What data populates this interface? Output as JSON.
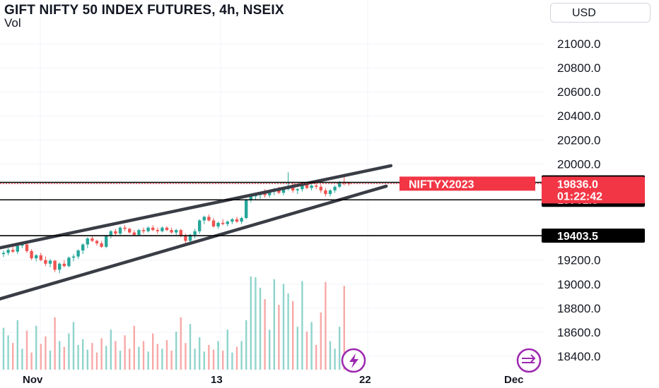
{
  "header": {
    "title": "GIFT NIFTY 50 INDEX FUTURES, 4h, NSEIX",
    "volume_label": "Vol",
    "currency": "USD"
  },
  "colors": {
    "up": "#26a69a",
    "down": "#ef5350",
    "vol_up": "#8fd4cc",
    "vol_down": "#f7a9a7",
    "trendline": "#3a3d46",
    "last_price": "#f23645",
    "horizontal_line": "#000000",
    "grid": "#f0f3fa"
  },
  "chart_data": {
    "type": "candlestick",
    "symbol": "GIFT NIFTY 50 INDEX FUTURES",
    "interval": "4h",
    "exchange": "NSEIX",
    "y_ticks": [
      21000.0,
      20800.0,
      20600.0,
      20400.0,
      20200.0,
      20000.0,
      19200.0,
      19000.0,
      18800.0,
      18600.0,
      18400.0
    ],
    "y_tick_labels": [
      "21000.0",
      "20800.0",
      "20600.0",
      "20400.0",
      "20200.0",
      "20000.0",
      "19200.0",
      "19000.0",
      "18800.0",
      "18600.0",
      "18400.0"
    ],
    "ylim": [
      18350,
      21100
    ],
    "x_ticks": [
      "Nov",
      "13",
      "22",
      "Dec"
    ],
    "ohlc": [
      [
        19250,
        19280,
        19225,
        19260
      ],
      [
        19260,
        19300,
        19240,
        19285
      ],
      [
        19285,
        19310,
        19260,
        19270
      ],
      [
        19270,
        19330,
        19250,
        19320
      ],
      [
        19320,
        19345,
        19300,
        19330
      ],
      [
        19330,
        19340,
        19260,
        19275
      ],
      [
        19275,
        19290,
        19200,
        19215
      ],
      [
        19215,
        19250,
        19190,
        19240
      ],
      [
        19240,
        19260,
        19190,
        19200
      ],
      [
        19200,
        19230,
        19150,
        19170
      ],
      [
        19170,
        19210,
        19140,
        19195
      ],
      [
        19195,
        19200,
        19100,
        19120
      ],
      [
        19120,
        19180,
        19090,
        19170
      ],
      [
        19170,
        19200,
        19140,
        19150
      ],
      [
        19150,
        19230,
        19140,
        19220
      ],
      [
        19220,
        19250,
        19190,
        19230
      ],
      [
        19230,
        19290,
        19210,
        19280
      ],
      [
        19280,
        19340,
        19250,
        19330
      ],
      [
        19330,
        19390,
        19300,
        19380
      ],
      [
        19380,
        19400,
        19350,
        19360
      ],
      [
        19360,
        19370,
        19320,
        19340
      ],
      [
        19340,
        19360,
        19300,
        19310
      ],
      [
        19310,
        19410,
        19300,
        19400
      ],
      [
        19400,
        19450,
        19380,
        19440
      ],
      [
        19440,
        19460,
        19400,
        19420
      ],
      [
        19420,
        19480,
        19410,
        19470
      ],
      [
        19470,
        19490,
        19440,
        19460
      ],
      [
        19460,
        19470,
        19420,
        19430
      ],
      [
        19430,
        19450,
        19400,
        19410
      ],
      [
        19410,
        19460,
        19400,
        19450
      ],
      [
        19450,
        19470,
        19420,
        19440
      ],
      [
        19440,
        19480,
        19430,
        19470
      ],
      [
        19470,
        19490,
        19440,
        19450
      ],
      [
        19450,
        19470,
        19420,
        19440
      ],
      [
        19440,
        19480,
        19430,
        19470
      ],
      [
        19470,
        19480,
        19440,
        19450
      ],
      [
        19450,
        19470,
        19420,
        19430
      ],
      [
        19430,
        19460,
        19410,
        19450
      ],
      [
        19450,
        19460,
        19390,
        19400
      ],
      [
        19400,
        19420,
        19340,
        19360
      ],
      [
        19360,
        19420,
        19350,
        19410
      ],
      [
        19410,
        19460,
        19380,
        19440
      ],
      [
        19440,
        19540,
        19420,
        19530
      ],
      [
        19530,
        19570,
        19500,
        19560
      ],
      [
        19560,
        19580,
        19520,
        19530
      ],
      [
        19530,
        19550,
        19470,
        19480
      ],
      [
        19480,
        19520,
        19460,
        19510
      ],
      [
        19510,
        19540,
        19490,
        19500
      ],
      [
        19500,
        19530,
        19480,
        19520
      ],
      [
        19520,
        19550,
        19500,
        19540
      ],
      [
        19540,
        19560,
        19510,
        19520
      ],
      [
        19520,
        19560,
        19500,
        19550
      ],
      [
        19550,
        19710,
        19540,
        19700
      ],
      [
        19700,
        19740,
        19680,
        19730
      ],
      [
        19730,
        19760,
        19700,
        19740
      ],
      [
        19740,
        19770,
        19710,
        19760
      ],
      [
        19760,
        19790,
        19720,
        19740
      ],
      [
        19740,
        19780,
        19720,
        19770
      ],
      [
        19770,
        19800,
        19740,
        19790
      ],
      [
        19790,
        19810,
        19750,
        19760
      ],
      [
        19760,
        19800,
        19740,
        19790
      ],
      [
        19790,
        19930,
        19780,
        19810
      ],
      [
        19810,
        19840,
        19760,
        19780
      ],
      [
        19780,
        19800,
        19750,
        19790
      ],
      [
        19790,
        19850,
        19770,
        19830
      ],
      [
        19830,
        19850,
        19790,
        19800
      ],
      [
        19800,
        19830,
        19780,
        19820
      ],
      [
        19820,
        19840,
        19790,
        19810
      ],
      [
        19810,
        19830,
        19760,
        19780
      ],
      [
        19780,
        19800,
        19730,
        19750
      ],
      [
        19750,
        19790,
        19730,
        19780
      ],
      [
        19780,
        19820,
        19760,
        19810
      ],
      [
        19810,
        19860,
        19800,
        19850
      ],
      [
        19850,
        19900,
        19820,
        19840
      ],
      [
        19840,
        19850,
        19820,
        19836
      ]
    ],
    "volume": [
      0.44,
      0.36,
      0.28,
      0.52,
      0.22,
      0.41,
      0.18,
      0.46,
      0.27,
      0.35,
      0.2,
      0.55,
      0.3,
      0.24,
      0.38,
      0.5,
      0.26,
      0.32,
      0.21,
      0.28,
      0.18,
      0.33,
      0.25,
      0.42,
      0.3,
      0.2,
      0.36,
      0.22,
      0.46,
      0.24,
      0.3,
      0.19,
      0.38,
      0.27,
      0.22,
      0.31,
      0.2,
      0.4,
      0.55,
      0.28,
      0.48,
      0.22,
      0.34,
      0.19,
      0.26,
      0.21,
      0.3,
      0.2,
      0.42,
      0.18,
      0.24,
      0.3,
      0.52,
      0.98,
      0.97,
      0.86,
      0.74,
      0.42,
      0.95,
      0.68,
      0.9,
      0.8,
      0.72,
      0.45,
      0.93,
      0.4,
      0.5,
      0.26,
      0.6,
      0.92,
      0.3,
      0.22,
      0.45,
      0.88,
      0.18
    ],
    "volume_ref_max": 1.0,
    "trendlines": [
      {
        "name": "upper",
        "from": {
          "bar": -1,
          "price": 19300
        },
        "to": {
          "bar": 83,
          "price": 19985
        }
      },
      {
        "name": "lower",
        "from": {
          "bar": -1,
          "price": 18875
        },
        "to": {
          "bar": 82,
          "price": 19815
        }
      }
    ],
    "horizontal_lines": [
      {
        "price": 19846.5,
        "label": "19846.5",
        "style": "solid"
      },
      {
        "price": 19701.5,
        "label": "19701.5",
        "style": "solid"
      },
      {
        "price": 19403.5,
        "label": "19403.5",
        "style": "solid"
      }
    ],
    "last_price": {
      "value": "19836.0",
      "countdown": "01:22:42",
      "symbol": "NIFTYX2023"
    }
  }
}
